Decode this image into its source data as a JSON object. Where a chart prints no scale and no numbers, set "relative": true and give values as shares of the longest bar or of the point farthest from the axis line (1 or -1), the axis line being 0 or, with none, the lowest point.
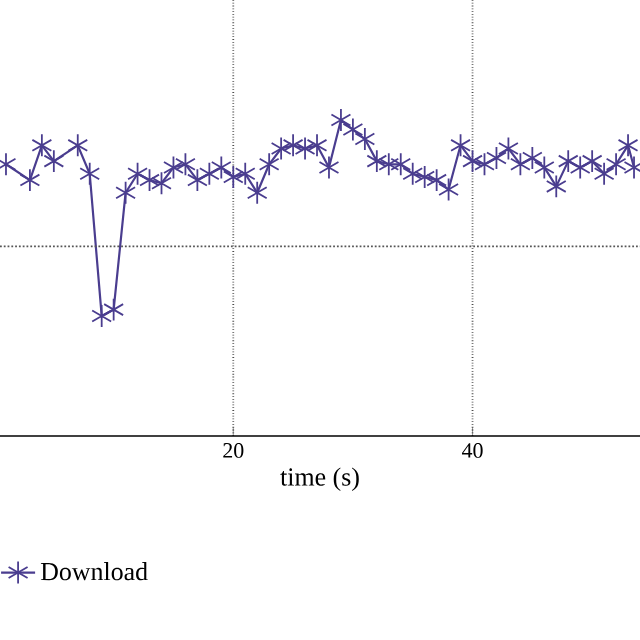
{
  "chart_data": {
    "type": "line",
    "relative": true,
    "xlabel": "time (s)",
    "xlim": [
      0.5,
      54
    ],
    "xticks": [
      20,
      40
    ],
    "grid": "x",
    "legend": "bottom left",
    "marker": "cross",
    "line_style": "solid",
    "ref_lines": [
      {
        "axis": "y",
        "value": 0.6,
        "line_style": "dotted",
        "color": "#555555"
      }
    ],
    "series": [
      {
        "name": "Download",
        "color": "#4a3d8f",
        "x": [
          1,
          3,
          4,
          5,
          7,
          8,
          9,
          10,
          11,
          12,
          13,
          14,
          15,
          16,
          17,
          18,
          19,
          20,
          21,
          22,
          23,
          24,
          25,
          26,
          27,
          28,
          29,
          30,
          31,
          32,
          33,
          34,
          35,
          36,
          37,
          38,
          39,
          40,
          41,
          42,
          43,
          44,
          45,
          46,
          47,
          48,
          49,
          50,
          51,
          52,
          53,
          53.5
        ],
        "values": [
          0.86,
          0.81,
          0.92,
          0.87,
          0.92,
          0.83,
          0.38,
          0.4,
          0.77,
          0.83,
          0.81,
          0.8,
          0.85,
          0.86,
          0.81,
          0.83,
          0.85,
          0.82,
          0.83,
          0.77,
          0.86,
          0.91,
          0.92,
          0.91,
          0.92,
          0.85,
          1,
          0.97,
          0.94,
          0.87,
          0.86,
          0.86,
          0.83,
          0.82,
          0.81,
          0.78,
          0.92,
          0.87,
          0.86,
          0.88,
          0.91,
          0.86,
          0.88,
          0.85,
          0.79,
          0.87,
          0.85,
          0.87,
          0.83,
          0.86,
          0.92,
          0.85
        ]
      }
    ]
  }
}
